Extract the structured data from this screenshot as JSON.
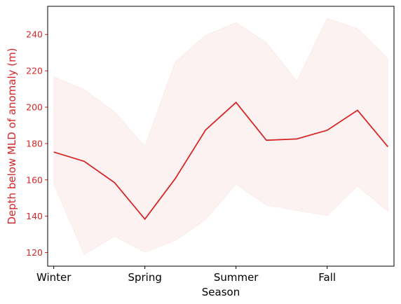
{
  "chart_data": {
    "type": "line",
    "xlabel": "Season",
    "ylabel": "Depth below MLD of anomaly (m)",
    "ylim": [
      112.5,
      255.5
    ],
    "xlim": [
      -0.2,
      11.2
    ],
    "x_ticks": [
      {
        "pos": 0,
        "label": "Winter"
      },
      {
        "pos": 3,
        "label": "Spring"
      },
      {
        "pos": 6,
        "label": "Summer"
      },
      {
        "pos": 9,
        "label": "Fall"
      }
    ],
    "y_ticks": [
      120,
      140,
      160,
      180,
      200,
      220,
      240
    ],
    "series": [
      {
        "x": [
          0,
          1,
          2,
          3,
          4,
          5,
          6,
          7,
          8,
          9,
          10,
          11
        ],
        "values": [
          175.3,
          170.2,
          158.5,
          138.4,
          160.7,
          187.5,
          202.6,
          181.8,
          182.5,
          187.3,
          198.3,
          178.2
        ],
        "upper": [
          216.7,
          209.7,
          197.5,
          178.4,
          224.9,
          239.6,
          246.5,
          235.5,
          214.2,
          248.9,
          243.2,
          226.7
        ],
        "lower": [
          157.7,
          119.0,
          128.9,
          120.2,
          126.6,
          138.1,
          157.7,
          146.1,
          143.2,
          140.3,
          156.6,
          142.7
        ]
      }
    ],
    "colors": {
      "line": "#d62728",
      "band": "#d62728",
      "ylabel": "#d62728",
      "yticks": "#d62728",
      "axes": "#000000"
    }
  }
}
